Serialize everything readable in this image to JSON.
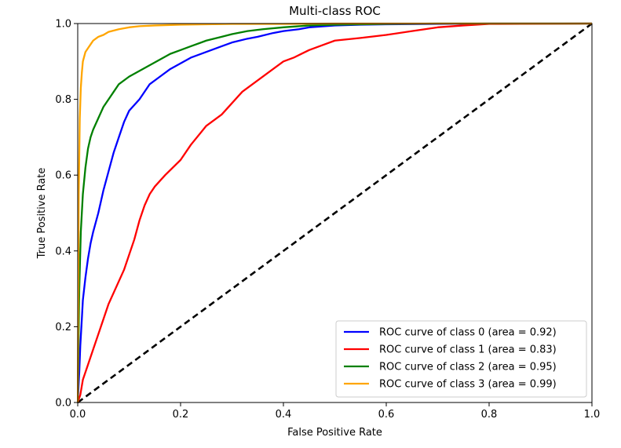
{
  "chart_data": {
    "type": "line",
    "title": "Multi-class ROC",
    "xlabel": "False Positive Rate",
    "ylabel": "True Positive Rate",
    "xlim": [
      0.0,
      1.0
    ],
    "ylim": [
      0.0,
      1.0
    ],
    "xticks": [
      "0.0",
      "0.2",
      "0.4",
      "0.6",
      "0.8",
      "1.0"
    ],
    "yticks": [
      "0.0",
      "0.2",
      "0.4",
      "0.6",
      "0.8",
      "1.0"
    ],
    "grid": false,
    "legend_position": "lower-right",
    "series": [
      {
        "name": "ROC curve of class 0 (area = 0.92)",
        "color": "#0000ff",
        "x": [
          0.0,
          0.003,
          0.005,
          0.008,
          0.01,
          0.015,
          0.02,
          0.025,
          0.03,
          0.04,
          0.05,
          0.06,
          0.07,
          0.08,
          0.09,
          0.1,
          0.12,
          0.14,
          0.16,
          0.18,
          0.2,
          0.22,
          0.25,
          0.28,
          0.3,
          0.33,
          0.35,
          0.38,
          0.4,
          0.43,
          0.45,
          0.5,
          0.55,
          0.6,
          0.7,
          0.8,
          1.0
        ],
        "y": [
          0.0,
          0.08,
          0.15,
          0.22,
          0.27,
          0.33,
          0.38,
          0.42,
          0.45,
          0.5,
          0.56,
          0.61,
          0.66,
          0.7,
          0.74,
          0.77,
          0.8,
          0.84,
          0.86,
          0.88,
          0.895,
          0.91,
          0.925,
          0.94,
          0.95,
          0.96,
          0.965,
          0.975,
          0.98,
          0.985,
          0.99,
          0.995,
          0.997,
          0.998,
          0.999,
          1.0,
          1.0
        ]
      },
      {
        "name": "ROC curve of class 1 (area = 0.83)",
        "color": "#ff0000",
        "x": [
          0.0,
          0.005,
          0.01,
          0.02,
          0.03,
          0.04,
          0.05,
          0.06,
          0.07,
          0.08,
          0.09,
          0.1,
          0.11,
          0.12,
          0.13,
          0.14,
          0.15,
          0.17,
          0.2,
          0.22,
          0.25,
          0.28,
          0.3,
          0.32,
          0.35,
          0.38,
          0.4,
          0.42,
          0.45,
          0.48,
          0.5,
          0.55,
          0.6,
          0.65,
          0.7,
          0.75,
          0.8,
          1.0
        ],
        "y": [
          0.0,
          0.02,
          0.06,
          0.1,
          0.14,
          0.18,
          0.22,
          0.26,
          0.29,
          0.32,
          0.35,
          0.39,
          0.43,
          0.48,
          0.52,
          0.55,
          0.57,
          0.6,
          0.64,
          0.68,
          0.73,
          0.76,
          0.79,
          0.82,
          0.85,
          0.88,
          0.9,
          0.91,
          0.93,
          0.945,
          0.955,
          0.962,
          0.97,
          0.98,
          0.99,
          0.995,
          0.999,
          1.0
        ]
      },
      {
        "name": "ROC curve of class 2 (area = 0.95)",
        "color": "#008000",
        "x": [
          0.0,
          0.003,
          0.006,
          0.01,
          0.015,
          0.02,
          0.025,
          0.03,
          0.04,
          0.05,
          0.06,
          0.07,
          0.08,
          0.1,
          0.12,
          0.14,
          0.16,
          0.18,
          0.2,
          0.22,
          0.25,
          0.28,
          0.3,
          0.33,
          0.36,
          0.4,
          0.45,
          0.5,
          0.55,
          0.6,
          0.7,
          1.0
        ],
        "y": [
          0.0,
          0.3,
          0.45,
          0.55,
          0.62,
          0.67,
          0.7,
          0.72,
          0.75,
          0.78,
          0.8,
          0.82,
          0.84,
          0.86,
          0.875,
          0.89,
          0.905,
          0.92,
          0.93,
          0.94,
          0.955,
          0.965,
          0.972,
          0.98,
          0.985,
          0.99,
          0.995,
          0.997,
          0.998,
          0.999,
          1.0,
          1.0
        ]
      },
      {
        "name": "ROC curve of class 3 (area = 0.99)",
        "color": "#ffa500",
        "x": [
          0.0,
          0.002,
          0.004,
          0.006,
          0.008,
          0.01,
          0.015,
          0.02,
          0.025,
          0.03,
          0.04,
          0.05,
          0.06,
          0.08,
          0.1,
          0.12,
          0.15,
          0.2,
          0.25,
          0.3,
          0.4,
          0.5,
          0.6,
          0.7,
          0.8,
          1.0
        ],
        "y": [
          0.0,
          0.55,
          0.75,
          0.83,
          0.87,
          0.9,
          0.925,
          0.935,
          0.945,
          0.955,
          0.965,
          0.97,
          0.978,
          0.985,
          0.99,
          0.993,
          0.995,
          0.997,
          0.998,
          0.999,
          0.999,
          1.0,
          1.0,
          1.0,
          1.0,
          1.0
        ]
      },
      {
        "name": "",
        "color": "#000000",
        "dashed": true,
        "x": [
          0.0,
          1.0
        ],
        "y": [
          0.0,
          1.0
        ]
      }
    ]
  }
}
